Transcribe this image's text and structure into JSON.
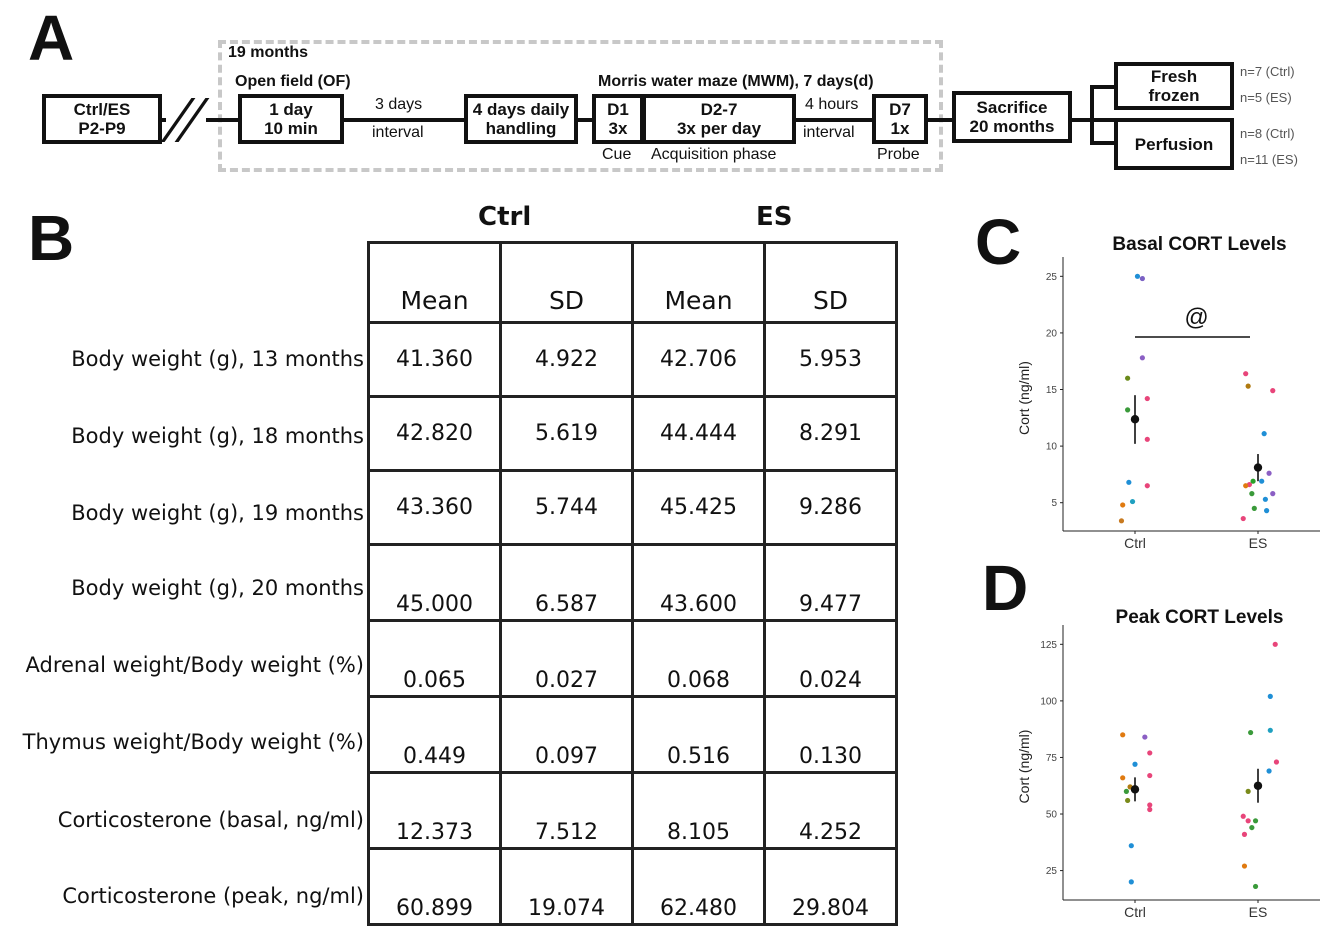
{
  "panelA": {
    "letter": "A",
    "dashed_title": "19 months",
    "start_box": [
      "Ctrl/ES",
      "P2-P9"
    ],
    "of_title": "Open field (OF)",
    "of_box": [
      "1 day",
      "10 min"
    ],
    "interval1": [
      "3 days",
      "interval"
    ],
    "handling_box": [
      "4 days daily",
      "handling"
    ],
    "mwm_title": "Morris water maze (MWM), 7 days(d)",
    "d1_box": [
      "D1",
      "3x"
    ],
    "d1_label": "Cue",
    "d27_box": [
      "D2-7",
      "3x per day"
    ],
    "d27_label": "Acquisition phase",
    "interval2": [
      "4 hours",
      "interval"
    ],
    "d7_box": [
      "D7",
      "1x"
    ],
    "d7_label": "Probe",
    "sacrifice_box": [
      "Sacrifice",
      "20 months"
    ],
    "fresh_box": [
      "Fresh",
      "frozen"
    ],
    "perfusion_box": "Perfusion",
    "n_fresh": [
      "n=7 (Ctrl)",
      "n=5 (ES)"
    ],
    "n_perf": [
      "n=8 (Ctrl)",
      "n=11 (ES)"
    ]
  },
  "panelB": {
    "letter": "B",
    "groups": [
      "Ctrl",
      "ES"
    ],
    "columns": [
      "Mean",
      "SD",
      "Mean",
      "SD"
    ],
    "rows": [
      {
        "label": "Body weight (g), 13 months",
        "values": [
          "41.360",
          "4.922",
          "42.706",
          "5.953"
        ]
      },
      {
        "label": "Body weight (g), 18 months",
        "values": [
          "42.820",
          "5.619",
          "44.444",
          "8.291"
        ]
      },
      {
        "label": "Body weight (g), 19 months",
        "values": [
          "43.360",
          "5.744",
          "45.425",
          "9.286"
        ]
      },
      {
        "label": "Body weight (g), 20 months",
        "values": [
          "45.000",
          "6.587",
          "43.600",
          "9.477"
        ]
      },
      {
        "label": "Adrenal weight/Body weight (%)",
        "values": [
          "0.065",
          "0.027",
          "0.068",
          "0.024"
        ]
      },
      {
        "label": "Thymus weight/Body weight (%)",
        "values": [
          "0.449",
          "0.097",
          "0.516",
          "0.130"
        ]
      },
      {
        "label": "Corticosterone (basal, ng/ml)",
        "values": [
          "12.373",
          "7.512",
          "8.105",
          "4.252"
        ]
      },
      {
        "label": "Corticosterone (peak, ng/ml)",
        "values": [
          "60.899",
          "19.074",
          "62.480",
          "29.804"
        ]
      }
    ]
  },
  "panelC": {
    "letter": "C"
  },
  "panelD": {
    "letter": "D"
  },
  "chart_data": [
    {
      "type": "scatter",
      "title": "Basal CORT Levels",
      "xlabel": "",
      "ylabel": "Cort (ng/ml)",
      "categories": [
        "Ctrl",
        "ES"
      ],
      "ylim": [
        2.5,
        26
      ],
      "yticks": [
        5,
        10,
        15,
        20,
        25
      ],
      "annotation": "@",
      "points": [
        {
          "group": "Ctrl",
          "offset": 0.02,
          "y": 25.0,
          "color": "#1f8fd6"
        },
        {
          "group": "Ctrl",
          "offset": 0.06,
          "y": 24.8,
          "color": "#7b61c4"
        },
        {
          "group": "Ctrl",
          "offset": 0.06,
          "y": 17.8,
          "color": "#8b5fc4"
        },
        {
          "group": "Ctrl",
          "offset": -0.06,
          "y": 16.0,
          "color": "#6a8a1a"
        },
        {
          "group": "Ctrl",
          "offset": 0.1,
          "y": 14.2,
          "color": "#e8457a"
        },
        {
          "group": "Ctrl",
          "offset": -0.06,
          "y": 13.2,
          "color": "#3a9a3a"
        },
        {
          "group": "Ctrl",
          "offset": 0.1,
          "y": 10.6,
          "color": "#e8457a"
        },
        {
          "group": "Ctrl",
          "offset": -0.05,
          "y": 6.8,
          "color": "#1f8fd6"
        },
        {
          "group": "Ctrl",
          "offset": 0.1,
          "y": 6.5,
          "color": "#e8457a"
        },
        {
          "group": "Ctrl",
          "offset": -0.02,
          "y": 5.1,
          "color": "#1fa0c0"
        },
        {
          "group": "Ctrl",
          "offset": -0.1,
          "y": 4.8,
          "color": "#e07a10"
        },
        {
          "group": "Ctrl",
          "offset": -0.11,
          "y": 3.4,
          "color": "#c87a20"
        },
        {
          "group": "ES",
          "offset": -0.1,
          "y": 16.4,
          "color": "#e8457a"
        },
        {
          "group": "ES",
          "offset": -0.08,
          "y": 15.3,
          "color": "#b07a10"
        },
        {
          "group": "ES",
          "offset": 0.12,
          "y": 14.9,
          "color": "#e8457a"
        },
        {
          "group": "ES",
          "offset": 0.05,
          "y": 11.1,
          "color": "#1f8fd6"
        },
        {
          "group": "ES",
          "offset": 0.09,
          "y": 7.6,
          "color": "#8b5fc4"
        },
        {
          "group": "ES",
          "offset": 0.03,
          "y": 6.9,
          "color": "#1f8fd6"
        },
        {
          "group": "ES",
          "offset": -0.07,
          "y": 6.6,
          "color": "#e8457a"
        },
        {
          "group": "ES",
          "offset": -0.1,
          "y": 6.5,
          "color": "#e07a10"
        },
        {
          "group": "ES",
          "offset": -0.04,
          "y": 6.9,
          "color": "#2aa02a"
        },
        {
          "group": "ES",
          "offset": 0.12,
          "y": 5.8,
          "color": "#8b5fc4"
        },
        {
          "group": "ES",
          "offset": -0.05,
          "y": 5.8,
          "color": "#3a9a3a"
        },
        {
          "group": "ES",
          "offset": 0.06,
          "y": 5.3,
          "color": "#1f8fd6"
        },
        {
          "group": "ES",
          "offset": -0.03,
          "y": 4.5,
          "color": "#3a9a3a"
        },
        {
          "group": "ES",
          "offset": 0.07,
          "y": 4.3,
          "color": "#1f8fd6"
        },
        {
          "group": "ES",
          "offset": -0.12,
          "y": 3.6,
          "color": "#e8457a"
        }
      ],
      "summary": [
        {
          "group": "Ctrl",
          "mean": 12.373,
          "low": 10.2,
          "high": 14.5
        },
        {
          "group": "ES",
          "mean": 8.105,
          "low": 6.9,
          "high": 9.3
        }
      ]
    },
    {
      "type": "scatter",
      "title": "Peak CORT Levels",
      "xlabel": "",
      "ylabel": "Cort (ng/ml)",
      "categories": [
        "Ctrl",
        "ES"
      ],
      "ylim": [
        12,
        130
      ],
      "yticks": [
        25,
        50,
        75,
        100,
        125
      ],
      "points": [
        {
          "group": "Ctrl",
          "offset": -0.1,
          "y": 85,
          "color": "#e07a10"
        },
        {
          "group": "Ctrl",
          "offset": 0.08,
          "y": 84,
          "color": "#8b5fc4"
        },
        {
          "group": "Ctrl",
          "offset": 0.12,
          "y": 77,
          "color": "#e8457a"
        },
        {
          "group": "Ctrl",
          "offset": 0.0,
          "y": 72,
          "color": "#1f8fd6"
        },
        {
          "group": "Ctrl",
          "offset": 0.12,
          "y": 67,
          "color": "#e8457a"
        },
        {
          "group": "Ctrl",
          "offset": -0.1,
          "y": 66,
          "color": "#e07a10"
        },
        {
          "group": "Ctrl",
          "offset": -0.04,
          "y": 62,
          "color": "#b07a10"
        },
        {
          "group": "Ctrl",
          "offset": -0.07,
          "y": 60,
          "color": "#3a9a3a"
        },
        {
          "group": "Ctrl",
          "offset": -0.06,
          "y": 56,
          "color": "#7a8a1a"
        },
        {
          "group": "Ctrl",
          "offset": 0.12,
          "y": 54,
          "color": "#e8457a"
        },
        {
          "group": "Ctrl",
          "offset": 0.12,
          "y": 52,
          "color": "#e8457a"
        },
        {
          "group": "Ctrl",
          "offset": -0.03,
          "y": 36,
          "color": "#1f8fd6"
        },
        {
          "group": "Ctrl",
          "offset": -0.03,
          "y": 20,
          "color": "#1f8fd6"
        },
        {
          "group": "ES",
          "offset": 0.14,
          "y": 125,
          "color": "#e8457a"
        },
        {
          "group": "ES",
          "offset": 0.1,
          "y": 102,
          "color": "#1f8fd6"
        },
        {
          "group": "ES",
          "offset": -0.06,
          "y": 86,
          "color": "#3a9a3a"
        },
        {
          "group": "ES",
          "offset": 0.1,
          "y": 87,
          "color": "#1fa0c0"
        },
        {
          "group": "ES",
          "offset": 0.15,
          "y": 73,
          "color": "#e8457a"
        },
        {
          "group": "ES",
          "offset": 0.09,
          "y": 69,
          "color": "#1f8fd6"
        },
        {
          "group": "ES",
          "offset": -0.08,
          "y": 60,
          "color": "#7a8a1a"
        },
        {
          "group": "ES",
          "offset": -0.12,
          "y": 49,
          "color": "#e8457a"
        },
        {
          "group": "ES",
          "offset": -0.08,
          "y": 47,
          "color": "#e8457a"
        },
        {
          "group": "ES",
          "offset": -0.02,
          "y": 47,
          "color": "#3a9a3a"
        },
        {
          "group": "ES",
          "offset": -0.05,
          "y": 44,
          "color": "#3a9a3a"
        },
        {
          "group": "ES",
          "offset": -0.11,
          "y": 41,
          "color": "#e8457a"
        },
        {
          "group": "ES",
          "offset": -0.11,
          "y": 27,
          "color": "#e07a10"
        },
        {
          "group": "ES",
          "offset": -0.02,
          "y": 18,
          "color": "#3a9a3a"
        }
      ],
      "summary": [
        {
          "group": "Ctrl",
          "mean": 60.899,
          "low": 55.6,
          "high": 66.2
        },
        {
          "group": "ES",
          "mean": 62.48,
          "low": 55.0,
          "high": 70.0
        }
      ]
    }
  ]
}
